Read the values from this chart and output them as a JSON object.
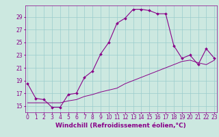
{
  "xlabel": "Windchill (Refroidissement éolien,°C)",
  "background_color": "#cce8e0",
  "line_color": "#880088",
  "grid_color": "#99cccc",
  "x_ticks": [
    0,
    1,
    2,
    3,
    4,
    5,
    6,
    7,
    8,
    9,
    10,
    11,
    12,
    13,
    14,
    15,
    16,
    17,
    18,
    19,
    20,
    21,
    22,
    23
  ],
  "y_ticks": [
    15,
    17,
    19,
    21,
    23,
    25,
    27,
    29
  ],
  "xlim": [
    -0.3,
    23.3
  ],
  "ylim": [
    14.0,
    30.8
  ],
  "curve1_x": [
    0,
    1,
    2,
    3,
    4,
    5,
    6,
    7,
    8,
    9,
    10,
    11,
    12,
    13,
    14,
    15,
    16,
    17,
    18,
    19,
    20,
    21,
    22,
    23
  ],
  "curve1_y": [
    18.5,
    16.2,
    16.0,
    14.8,
    14.8,
    16.8,
    17.0,
    19.5,
    20.5,
    23.2,
    25.0,
    28.0,
    28.8,
    30.2,
    30.2,
    30.0,
    29.5,
    29.5,
    24.5,
    22.5,
    23.0,
    21.5,
    24.0,
    22.5
  ],
  "curve2_x": [
    0,
    1,
    2,
    3,
    4,
    5,
    6,
    7,
    8,
    9,
    10,
    11,
    12,
    13,
    14,
    15,
    16,
    17,
    18,
    19,
    20,
    21,
    22,
    23
  ],
  "curve2_y": [
    15.5,
    15.5,
    15.5,
    15.5,
    15.5,
    15.8,
    16.0,
    16.5,
    16.8,
    17.2,
    17.5,
    17.8,
    18.5,
    19.0,
    19.5,
    20.0,
    20.5,
    21.0,
    21.5,
    22.0,
    22.2,
    21.8,
    21.5,
    22.2
  ],
  "marker": "D",
  "markersize": 2.0,
  "linewidth": 0.8,
  "xlabel_fontsize": 6.5,
  "tick_fontsize": 5.5
}
